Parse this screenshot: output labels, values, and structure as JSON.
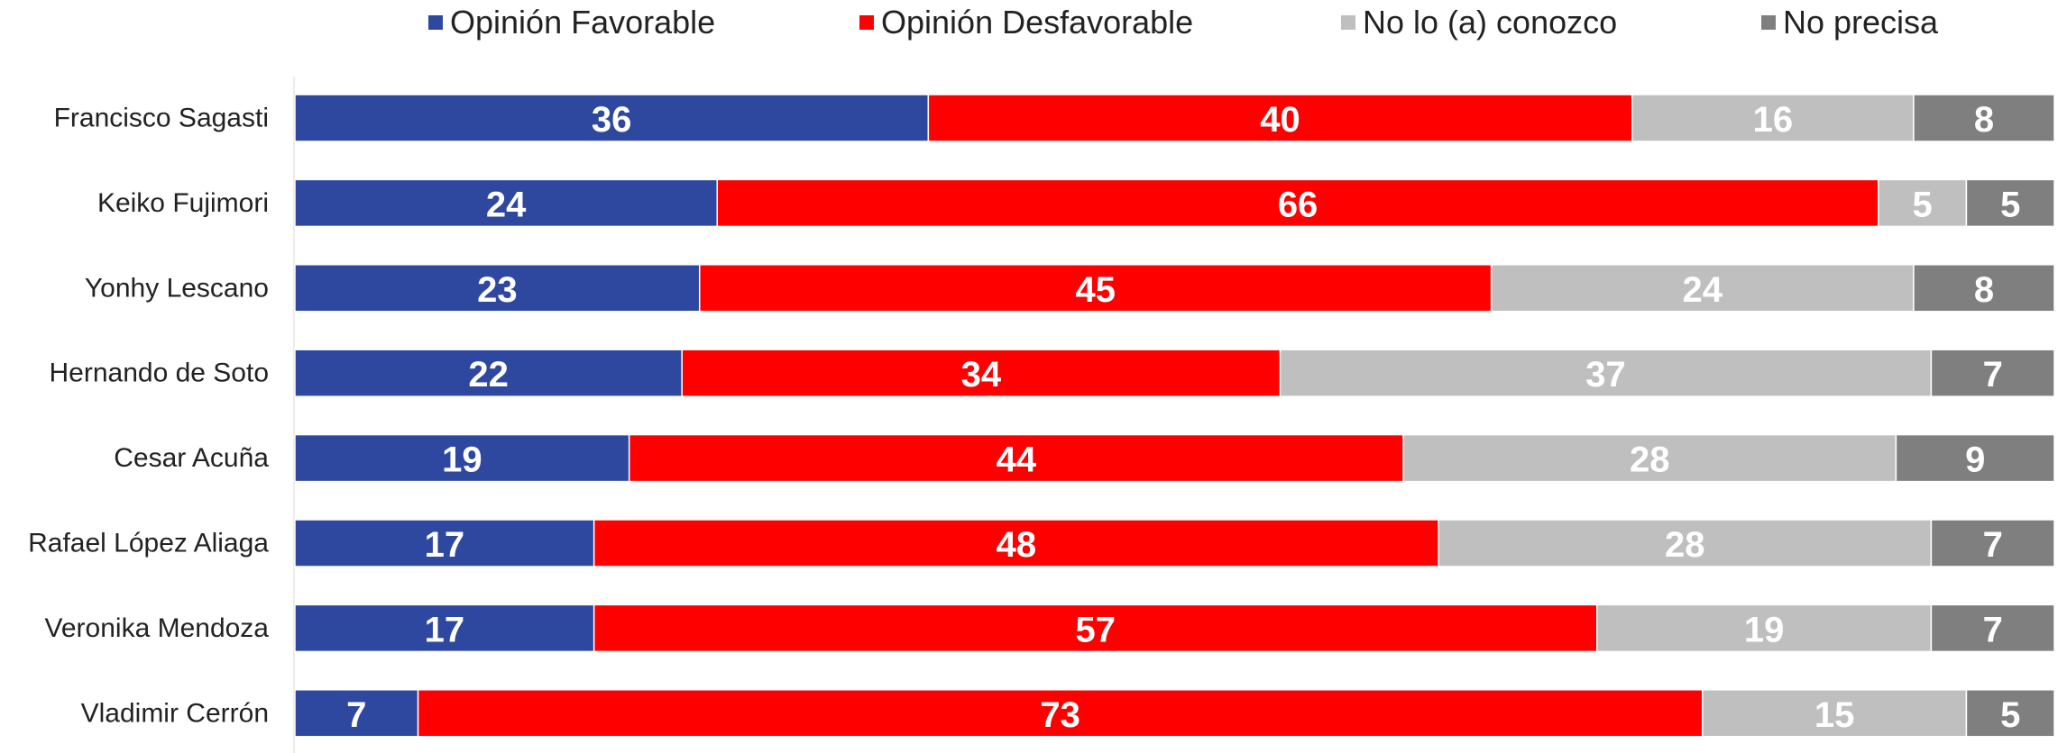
{
  "chart_data": {
    "type": "bar",
    "orientation": "horizontal",
    "stacked": true,
    "categories": [
      "Francisco Sagasti",
      "Keiko Fujimori",
      "Yonhy Lescano",
      "Hernando de Soto",
      "Cesar Acuña",
      "Rafael López Aliaga",
      "Veronika Mendoza",
      "Vladimir Cerrón"
    ],
    "series": [
      {
        "name": "Opinión Favorable",
        "color": "#2E48A0",
        "values": [
          36,
          24,
          23,
          22,
          19,
          17,
          17,
          7
        ]
      },
      {
        "name": "Opinión Desfavorable",
        "color": "#FF0000",
        "values": [
          40,
          66,
          45,
          34,
          44,
          48,
          57,
          73
        ]
      },
      {
        "name": "No lo (a) conozco",
        "color": "#BFBFBF",
        "values": [
          16,
          5,
          24,
          37,
          28,
          28,
          19,
          15
        ]
      },
      {
        "name": "No precisa",
        "color": "#7F7F7F",
        "values": [
          8,
          5,
          8,
          7,
          9,
          7,
          7,
          5
        ]
      }
    ],
    "legend_position": "top",
    "grid": false,
    "data_labels": true
  }
}
